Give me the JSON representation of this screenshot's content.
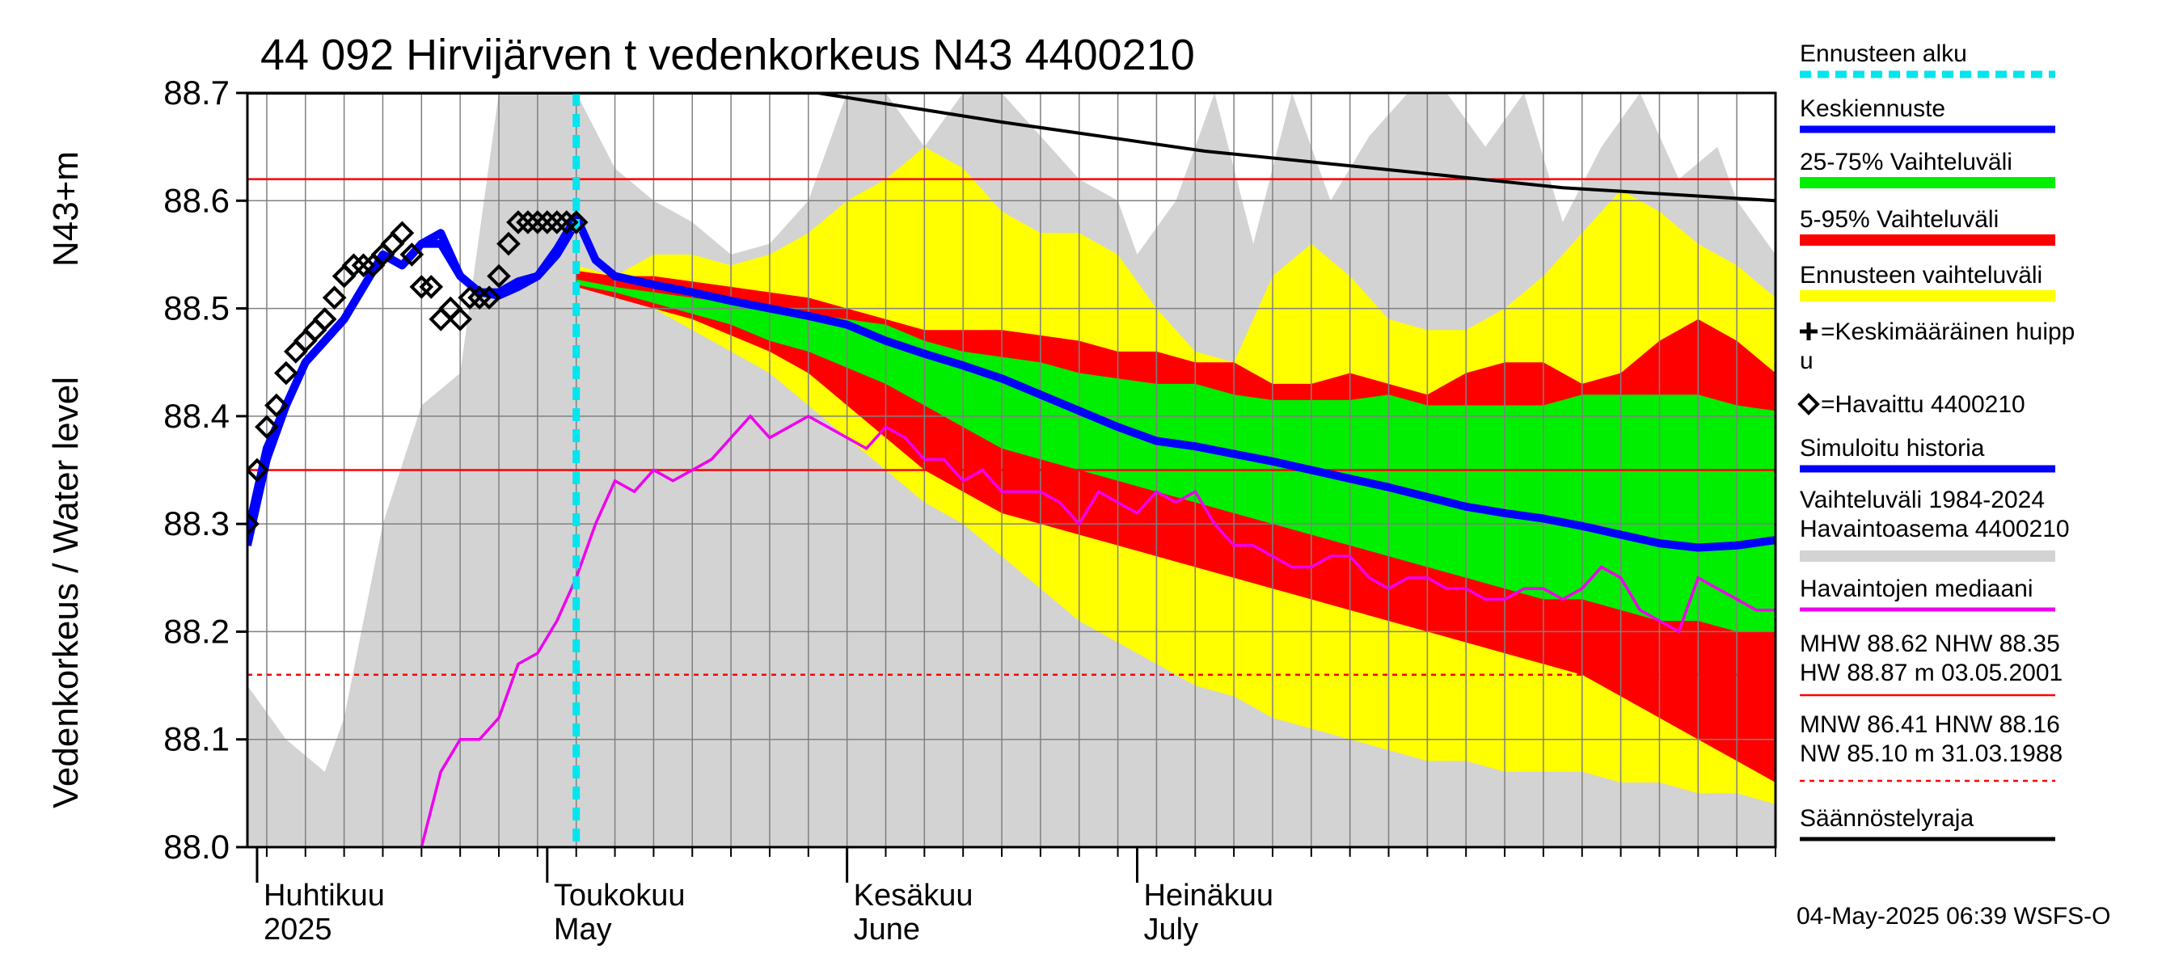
{
  "chart_data": {
    "type": "line",
    "title": "44 092 Hirvijärven t vedenkorkeus N43 4400210",
    "ylabel_main": "Vedenkorkeus / Water level",
    "ylabel_unit": "N43+m",
    "ylim": [
      88.0,
      88.7
    ],
    "yticks": [
      "88.0",
      "88.1",
      "88.2",
      "88.3",
      "88.4",
      "88.5",
      "88.6",
      "88.7"
    ],
    "x_range_days": [
      -34,
      124
    ],
    "forecast_start_day": 0,
    "months": [
      {
        "fi": "Huhtikuu",
        "en": "2025",
        "day": -33
      },
      {
        "fi": "Toukokuu",
        "en": "May",
        "day": -3
      },
      {
        "fi": "Kesäkuu",
        "en": "June",
        "day": 28
      },
      {
        "fi": "Heinäkuu",
        "en": "July",
        "day": 58
      }
    ],
    "hlines": [
      {
        "name": "MHW",
        "value": 88.62,
        "color": "#ff0000",
        "dash": false
      },
      {
        "name": "NHW",
        "value": 88.35,
        "color": "#ff0000",
        "dash": false
      },
      {
        "name": "HNW",
        "value": 88.16,
        "color": "#ff0000",
        "dash": true
      }
    ],
    "regulation_limit": {
      "x": [
        -34,
        25,
        44,
        65,
        87,
        102,
        124
      ],
      "y": [
        88.7,
        88.7,
        88.673,
        88.646,
        88.626,
        88.612,
        88.6
      ]
    },
    "history_range": {
      "x": [
        -34,
        -30,
        -26,
        -24,
        -20,
        -16,
        -12,
        -8,
        -4,
        -2,
        0,
        4,
        8,
        12,
        16,
        20,
        24,
        28,
        32,
        36,
        40,
        44,
        48,
        52,
        56,
        58,
        62,
        66,
        70,
        74,
        78,
        82,
        86,
        90,
        94,
        98,
        102,
        106,
        110,
        114,
        118,
        120,
        124
      ],
      "upper": [
        88.15,
        88.1,
        88.07,
        88.12,
        88.3,
        88.41,
        88.44,
        88.7,
        88.7,
        88.7,
        88.7,
        88.63,
        88.6,
        88.58,
        88.55,
        88.56,
        88.6,
        88.7,
        88.7,
        88.65,
        88.7,
        88.7,
        88.66,
        88.62,
        88.6,
        88.55,
        88.6,
        88.7,
        88.56,
        88.7,
        88.6,
        88.66,
        88.7,
        88.7,
        88.65,
        88.7,
        88.58,
        88.65,
        88.7,
        88.62,
        88.65,
        88.6,
        88.55
      ],
      "lower": [
        88.0,
        88.0,
        88.0,
        88.0,
        88.0,
        88.0,
        88.0,
        88.0,
        88.0,
        88.0,
        88.0,
        88.0,
        88.0,
        88.0,
        88.0,
        88.0,
        88.0,
        88.0,
        88.0,
        88.0,
        88.0,
        88.0,
        88.0,
        88.0,
        88.0,
        88.0,
        88.0,
        88.0,
        88.0,
        88.0,
        88.0,
        88.0,
        88.0,
        88.0,
        88.0,
        88.0,
        88.0,
        88.0,
        88.0,
        88.0,
        88.0,
        88.0,
        88.0
      ]
    },
    "forecast_range": {
      "x": [
        0,
        4,
        8,
        12,
        16,
        20,
        24,
        28,
        32,
        36,
        40,
        44,
        48,
        52,
        56,
        60,
        64,
        68,
        72,
        76,
        80,
        84,
        88,
        92,
        96,
        100,
        104,
        108,
        112,
        116,
        120,
        124
      ],
      "upper": [
        88.54,
        88.53,
        88.55,
        88.55,
        88.54,
        88.55,
        88.57,
        88.6,
        88.62,
        88.65,
        88.63,
        88.59,
        88.57,
        88.57,
        88.55,
        88.5,
        88.46,
        88.45,
        88.53,
        88.56,
        88.53,
        88.49,
        88.48,
        88.48,
        88.5,
        88.53,
        88.57,
        88.61,
        88.59,
        88.56,
        88.54,
        88.51
      ],
      "lower": [
        88.52,
        88.51,
        88.5,
        88.48,
        88.46,
        88.44,
        88.41,
        88.38,
        88.35,
        88.32,
        88.3,
        88.27,
        88.24,
        88.21,
        88.19,
        88.17,
        88.15,
        88.14,
        88.12,
        88.11,
        88.1,
        88.09,
        88.08,
        88.08,
        88.07,
        88.07,
        88.07,
        88.06,
        88.06,
        88.05,
        88.05,
        88.04
      ]
    },
    "range_5_95": {
      "x": [
        0,
        4,
        8,
        12,
        16,
        20,
        24,
        28,
        32,
        36,
        40,
        44,
        48,
        52,
        56,
        60,
        64,
        68,
        72,
        76,
        80,
        84,
        88,
        92,
        96,
        100,
        104,
        108,
        112,
        116,
        120,
        124
      ],
      "upper": [
        88.535,
        88.53,
        88.53,
        88.525,
        88.52,
        88.515,
        88.51,
        88.5,
        88.49,
        88.48,
        88.48,
        88.48,
        88.475,
        88.47,
        88.46,
        88.46,
        88.45,
        88.45,
        88.43,
        88.43,
        88.44,
        88.43,
        88.42,
        88.44,
        88.45,
        88.45,
        88.43,
        88.44,
        88.47,
        88.49,
        88.47,
        88.44
      ],
      "lower": [
        88.52,
        88.51,
        88.5,
        88.49,
        88.475,
        88.46,
        88.44,
        88.41,
        88.38,
        88.35,
        88.33,
        88.31,
        88.3,
        88.29,
        88.28,
        88.27,
        88.26,
        88.25,
        88.24,
        88.23,
        88.22,
        88.21,
        88.2,
        88.19,
        88.18,
        88.17,
        88.16,
        88.14,
        88.12,
        88.1,
        88.08,
        88.06
      ]
    },
    "range_25_75": {
      "x": [
        0,
        4,
        8,
        12,
        16,
        20,
        24,
        28,
        32,
        36,
        40,
        44,
        48,
        52,
        56,
        60,
        64,
        68,
        72,
        76,
        80,
        84,
        88,
        92,
        96,
        100,
        104,
        108,
        112,
        116,
        120,
        124
      ],
      "upper": [
        88.527,
        88.52,
        88.515,
        88.51,
        88.505,
        88.5,
        88.495,
        88.49,
        88.485,
        88.47,
        88.46,
        88.455,
        88.45,
        88.44,
        88.435,
        88.43,
        88.43,
        88.42,
        88.415,
        88.415,
        88.415,
        88.42,
        88.41,
        88.41,
        88.41,
        88.41,
        88.42,
        88.42,
        88.42,
        88.42,
        88.41,
        88.405
      ],
      "lower": [
        88.522,
        88.515,
        88.505,
        88.495,
        88.485,
        88.47,
        88.46,
        88.445,
        88.43,
        88.41,
        88.39,
        88.37,
        88.36,
        88.35,
        88.34,
        88.33,
        88.32,
        88.31,
        88.3,
        88.29,
        88.28,
        88.27,
        88.26,
        88.25,
        88.24,
        88.23,
        88.23,
        88.22,
        88.21,
        88.21,
        88.2,
        88.2
      ]
    },
    "mean_forecast": {
      "x": [
        -34,
        -32,
        -30,
        -28,
        -26,
        -24,
        -22,
        -20,
        -18,
        -16,
        -14,
        -12,
        -10,
        -8,
        -6,
        -4,
        -2,
        0,
        2,
        4,
        8,
        12,
        16,
        20,
        24,
        28,
        32,
        36,
        40,
        44,
        48,
        52,
        56,
        60,
        64,
        68,
        72,
        76,
        80,
        84,
        88,
        92,
        96,
        100,
        104,
        108,
        112,
        116,
        120,
        124
      ],
      "y": [
        88.29,
        88.37,
        88.41,
        88.45,
        88.47,
        88.49,
        88.52,
        88.55,
        88.54,
        88.56,
        88.56,
        88.53,
        88.515,
        88.515,
        88.525,
        88.53,
        88.555,
        88.585,
        88.545,
        88.53,
        88.522,
        88.515,
        88.507,
        88.5,
        88.493,
        88.485,
        88.47,
        88.458,
        88.447,
        88.435,
        88.42,
        88.405,
        88.39,
        88.377,
        88.372,
        88.365,
        88.358,
        88.35,
        88.342,
        88.334,
        88.325,
        88.316,
        88.31,
        88.305,
        88.298,
        88.29,
        88.282,
        88.278,
        88.28,
        88.285
      ]
    },
    "simulated_history": {
      "x": [
        -34,
        -32,
        -30,
        -28,
        -26,
        -24,
        -22,
        -20,
        -18,
        -16,
        -14,
        -12,
        -10,
        -8,
        -6,
        -4,
        -2,
        0
      ],
      "y": [
        88.28,
        88.36,
        88.41,
        88.45,
        88.47,
        88.49,
        88.52,
        88.55,
        88.54,
        88.56,
        88.57,
        88.53,
        88.515,
        88.512,
        88.52,
        88.53,
        88.55,
        88.58
      ]
    },
    "observed": {
      "x": [
        -34,
        -33,
        -32,
        -31,
        -30,
        -29,
        -28,
        -27,
        -26,
        -25,
        -24,
        -23,
        -22,
        -21,
        -20,
        -19,
        -18,
        -17,
        -16,
        -15,
        -14,
        -13,
        -12,
        -11,
        -10,
        -9,
        -8,
        -7,
        -6,
        -5,
        -4,
        -3,
        -2,
        -1,
        0
      ],
      "y": [
        88.3,
        88.35,
        88.39,
        88.41,
        88.44,
        88.46,
        88.47,
        88.48,
        88.49,
        88.51,
        88.53,
        88.54,
        88.54,
        88.54,
        88.55,
        88.56,
        88.57,
        88.55,
        88.52,
        88.52,
        88.49,
        88.5,
        88.49,
        88.51,
        88.51,
        88.51,
        88.53,
        88.56,
        88.58,
        88.58,
        88.58,
        88.58,
        88.58,
        88.58,
        88.58
      ]
    },
    "median_observed": {
      "x": [
        -16,
        -14,
        -12,
        -10,
        -8,
        -6,
        -4,
        -2,
        0,
        2,
        4,
        6,
        8,
        10,
        12,
        14,
        16,
        18,
        20,
        22,
        24,
        26,
        28,
        30,
        32,
        34,
        36,
        38,
        40,
        42,
        44,
        46,
        48,
        50,
        52,
        54,
        56,
        58,
        60,
        62,
        64,
        66,
        68,
        70,
        72,
        74,
        76,
        78,
        80,
        82,
        84,
        86,
        88,
        90,
        92,
        94,
        96,
        98,
        100,
        102,
        104,
        106,
        108,
        110,
        112,
        114,
        116,
        118,
        120,
        122,
        124
      ],
      "y": [
        88.0,
        88.07,
        88.1,
        88.1,
        88.12,
        88.17,
        88.18,
        88.21,
        88.25,
        88.3,
        88.34,
        88.33,
        88.35,
        88.34,
        88.35,
        88.36,
        88.38,
        88.4,
        88.38,
        88.39,
        88.4,
        88.39,
        88.38,
        88.37,
        88.39,
        88.38,
        88.36,
        88.36,
        88.34,
        88.35,
        88.33,
        88.33,
        88.33,
        88.32,
        88.3,
        88.33,
        88.32,
        88.31,
        88.33,
        88.32,
        88.33,
        88.3,
        88.28,
        88.28,
        88.27,
        88.26,
        88.26,
        88.27,
        88.27,
        88.25,
        88.24,
        88.25,
        88.25,
        88.24,
        88.24,
        88.23,
        88.23,
        88.24,
        88.24,
        88.23,
        88.24,
        88.26,
        88.25,
        88.22,
        88.21,
        88.2,
        88.25,
        88.24,
        88.23,
        88.22,
        88.22
      ]
    },
    "legend": [
      {
        "label": "Ennusteen alku",
        "color": "#00e5ee",
        "style": "dash"
      },
      {
        "label": "Keskiennuste",
        "color": "#0000ff",
        "style": "line"
      },
      {
        "label": "25-75% Vaihteluväli",
        "color": "#00ee00",
        "style": "band"
      },
      {
        "label": "5-95% Vaihteluväli",
        "color": "#ff0000",
        "style": "band"
      },
      {
        "label": "Ennusteen vaihteluväli",
        "color": "#ffff00",
        "style": "band"
      },
      {
        "label": "=Keskimääräinen huipp",
        "label2": "u",
        "color": "#000000",
        "style": "plus"
      },
      {
        "label": "=Havaittu 4400210",
        "color": "#000000",
        "style": "diamond"
      },
      {
        "label": "Simuloitu historia",
        "color": "#0000ff",
        "style": "line"
      },
      {
        "label": "Vaihteluväli 1984-2024",
        "label2": " Havaintoasema 4400210",
        "color": "#d3d3d3",
        "style": "band"
      },
      {
        "label": "Havaintojen mediaani",
        "color": "#ee00ee",
        "style": "line"
      },
      {
        "label": "MHW  88.62 NHW  88.35",
        "label2": "HW  88.87 m 03.05.2001",
        "color": "#ff0000",
        "style": "line"
      },
      {
        "label": "MNW  86.41 HNW  88.16",
        "label2": "NW  85.10 m 31.03.1988",
        "color": "#ff0000",
        "style": "dashline"
      },
      {
        "label": "Säännöstelyraja",
        "color": "#000000",
        "style": "line"
      }
    ],
    "footer": "04-May-2025 06:39 WSFS-O"
  }
}
